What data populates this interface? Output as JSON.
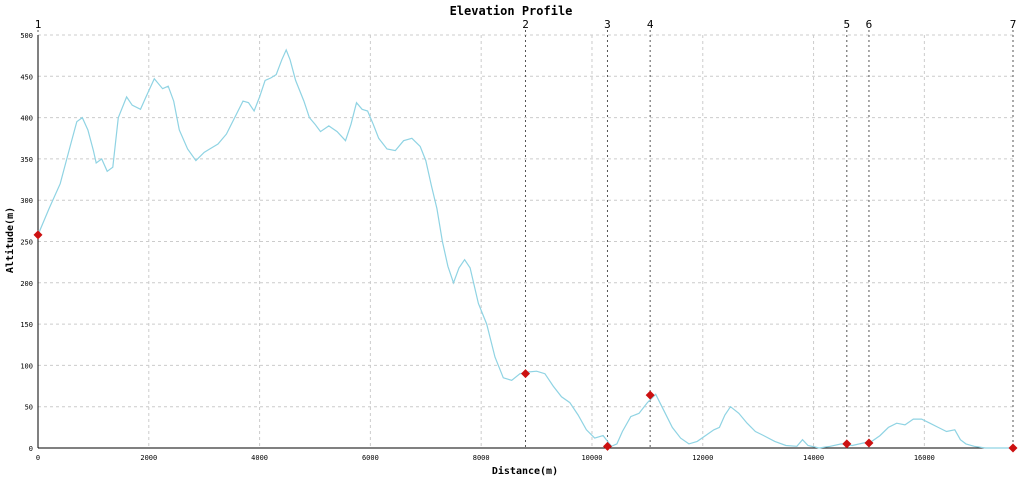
{
  "chart_data": {
    "type": "line",
    "title": "Elevation Profile",
    "xlabel": "Distance(m)",
    "ylabel": "Altitude(m)",
    "xlim": [
      0,
      17600
    ],
    "ylim": [
      0,
      500
    ],
    "grid": true,
    "x_ticks": [
      0,
      2000,
      4000,
      6000,
      8000,
      10000,
      12000,
      14000,
      16000
    ],
    "y_ticks": [
      0,
      50,
      100,
      150,
      200,
      250,
      300,
      350,
      400,
      450,
      500
    ],
    "series": [
      {
        "color": "#8fd3e3",
        "points": [
          [
            0,
            258
          ],
          [
            200,
            290
          ],
          [
            400,
            320
          ],
          [
            500,
            345
          ],
          [
            600,
            370
          ],
          [
            700,
            395
          ],
          [
            800,
            400
          ],
          [
            900,
            385
          ],
          [
            1000,
            360
          ],
          [
            1050,
            345
          ],
          [
            1150,
            350
          ],
          [
            1250,
            335
          ],
          [
            1350,
            340
          ],
          [
            1450,
            400
          ],
          [
            1600,
            425
          ],
          [
            1700,
            415
          ],
          [
            1850,
            410
          ],
          [
            1950,
            425
          ],
          [
            2100,
            447
          ],
          [
            2250,
            435
          ],
          [
            2350,
            438
          ],
          [
            2450,
            420
          ],
          [
            2550,
            385
          ],
          [
            2700,
            362
          ],
          [
            2850,
            348
          ],
          [
            3000,
            358
          ],
          [
            3100,
            362
          ],
          [
            3250,
            368
          ],
          [
            3400,
            380
          ],
          [
            3550,
            400
          ],
          [
            3700,
            420
          ],
          [
            3800,
            418
          ],
          [
            3900,
            408
          ],
          [
            4000,
            425
          ],
          [
            4100,
            445
          ],
          [
            4200,
            448
          ],
          [
            4300,
            452
          ],
          [
            4400,
            470
          ],
          [
            4480,
            482
          ],
          [
            4550,
            470
          ],
          [
            4650,
            445
          ],
          [
            4800,
            420
          ],
          [
            4900,
            400
          ],
          [
            5000,
            392
          ],
          [
            5100,
            383
          ],
          [
            5250,
            390
          ],
          [
            5400,
            383
          ],
          [
            5550,
            372
          ],
          [
            5650,
            392
          ],
          [
            5750,
            418
          ],
          [
            5850,
            410
          ],
          [
            5950,
            408
          ],
          [
            6050,
            392
          ],
          [
            6150,
            375
          ],
          [
            6300,
            362
          ],
          [
            6450,
            360
          ],
          [
            6600,
            372
          ],
          [
            6750,
            375
          ],
          [
            6900,
            365
          ],
          [
            7000,
            348
          ],
          [
            7100,
            318
          ],
          [
            7200,
            290
          ],
          [
            7300,
            250
          ],
          [
            7400,
            220
          ],
          [
            7500,
            200
          ],
          [
            7600,
            218
          ],
          [
            7700,
            228
          ],
          [
            7800,
            218
          ],
          [
            7950,
            175
          ],
          [
            8100,
            150
          ],
          [
            8250,
            110
          ],
          [
            8400,
            85
          ],
          [
            8550,
            82
          ],
          [
            8700,
            90
          ],
          [
            8850,
            92
          ],
          [
            9000,
            93
          ],
          [
            9150,
            90
          ],
          [
            9300,
            75
          ],
          [
            9450,
            62
          ],
          [
            9600,
            55
          ],
          [
            9750,
            40
          ],
          [
            9900,
            22
          ],
          [
            10050,
            12
          ],
          [
            10200,
            15
          ],
          [
            10350,
            2
          ],
          [
            10450,
            5
          ],
          [
            10550,
            20
          ],
          [
            10700,
            38
          ],
          [
            10850,
            42
          ],
          [
            11000,
            55
          ],
          [
            11150,
            65
          ],
          [
            11300,
            45
          ],
          [
            11450,
            25
          ],
          [
            11600,
            12
          ],
          [
            11750,
            5
          ],
          [
            11900,
            8
          ],
          [
            12050,
            15
          ],
          [
            12200,
            22
          ],
          [
            12300,
            25
          ],
          [
            12400,
            40
          ],
          [
            12500,
            50
          ],
          [
            12650,
            42
          ],
          [
            12800,
            30
          ],
          [
            12950,
            20
          ],
          [
            13100,
            15
          ],
          [
            13300,
            8
          ],
          [
            13500,
            3
          ],
          [
            13700,
            2
          ],
          [
            13800,
            10
          ],
          [
            13900,
            3
          ],
          [
            14100,
            0
          ],
          [
            14300,
            2
          ],
          [
            14500,
            5
          ],
          [
            14700,
            3
          ],
          [
            14900,
            6
          ],
          [
            15050,
            8
          ],
          [
            15200,
            15
          ],
          [
            15350,
            25
          ],
          [
            15500,
            30
          ],
          [
            15650,
            28
          ],
          [
            15800,
            35
          ],
          [
            15950,
            35
          ],
          [
            16100,
            30
          ],
          [
            16250,
            25
          ],
          [
            16400,
            20
          ],
          [
            16550,
            22
          ],
          [
            16650,
            10
          ],
          [
            16750,
            5
          ],
          [
            16900,
            2
          ],
          [
            17100,
            0
          ],
          [
            17300,
            0
          ],
          [
            17600,
            0
          ]
        ]
      }
    ],
    "waypoints": [
      {
        "label": "1",
        "x": 0,
        "y": 258
      },
      {
        "label": "2",
        "x": 8800,
        "y": 90
      },
      {
        "label": "3",
        "x": 10280,
        "y": 2
      },
      {
        "label": "4",
        "x": 11050,
        "y": 64
      },
      {
        "label": "5",
        "x": 14600,
        "y": 5
      },
      {
        "label": "6",
        "x": 15000,
        "y": 6
      },
      {
        "label": "7",
        "x": 17600,
        "y": 0
      }
    ],
    "colors": {
      "line": "#8fd3e3",
      "marker": "#cc1111",
      "grid": "#cccccc",
      "axis": "#000000"
    }
  }
}
